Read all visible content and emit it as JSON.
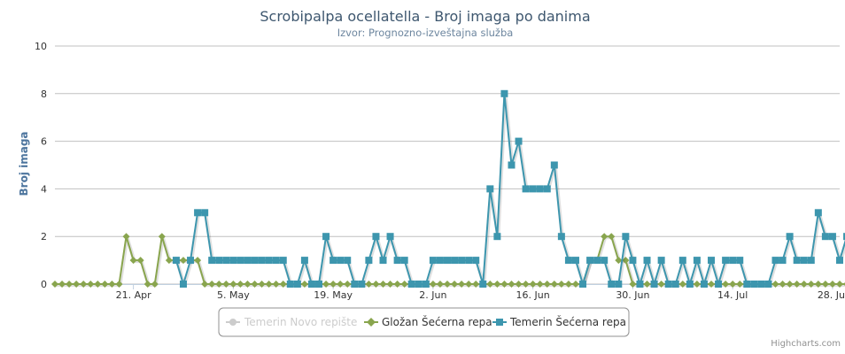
{
  "chart_data": {
    "type": "line",
    "title": "Scrobipalpa ocellatella - Broj imaga po danima",
    "subtitle": "Izvor: Prognozno-izveštajna služba",
    "ylabel": "Broj imaga",
    "xlabel": "",
    "ylim": [
      0,
      10
    ],
    "yticks": [
      "0",
      "2",
      "4",
      "6",
      "8",
      "10"
    ],
    "x_start": "2014-04-10",
    "x_end": "2014-07-29",
    "xticks": [
      {
        "date": "2014-04-21",
        "label": "21. Apr"
      },
      {
        "date": "2014-05-05",
        "label": "5. May"
      },
      {
        "date": "2014-05-19",
        "label": "19. May"
      },
      {
        "date": "2014-06-02",
        "label": "2. Jun"
      },
      {
        "date": "2014-06-16",
        "label": "16. Jun"
      },
      {
        "date": "2014-06-30",
        "label": "30. Jun"
      },
      {
        "date": "2014-07-14",
        "label": "14. Jul"
      },
      {
        "date": "2014-07-28",
        "label": "28. Jul"
      }
    ],
    "grid": true,
    "legend_position": "bottom-center",
    "series": [
      {
        "name": "Temerin Novo repište",
        "color": "#cccccc",
        "marker": "circle",
        "visible": false,
        "start": "2014-04-10",
        "values": []
      },
      {
        "name": "Gložan Šećerna repa",
        "color": "#89a54e",
        "marker": "diamond",
        "visible": true,
        "start": "2014-04-10",
        "values": [
          0,
          0,
          0,
          0,
          0,
          0,
          0,
          0,
          0,
          0,
          2,
          1,
          1,
          0,
          0,
          2,
          1,
          1,
          1,
          1,
          1,
          0,
          0,
          0,
          0,
          0,
          0,
          0,
          0,
          0,
          0,
          0,
          0,
          0,
          0,
          0,
          0,
          0,
          0,
          0,
          0,
          0,
          0,
          0,
          0,
          0,
          0,
          0,
          0,
          0,
          0,
          0,
          0,
          0,
          0,
          0,
          0,
          0,
          0,
          0,
          0,
          0,
          0,
          0,
          0,
          0,
          0,
          0,
          0,
          0,
          0,
          0,
          0,
          0,
          0,
          1,
          1,
          2,
          2,
          1,
          1,
          0,
          0,
          0,
          0,
          0,
          0,
          0,
          0,
          0,
          0,
          0,
          0,
          0,
          0,
          0,
          0,
          0,
          0,
          0,
          0,
          0,
          0,
          0,
          0,
          0,
          0,
          0,
          0,
          0,
          0,
          0
        ]
      },
      {
        "name": "Temerin Šećerna repa",
        "color": "#3d96ae",
        "marker": "square",
        "visible": true,
        "start": "2014-04-27",
        "values": [
          1,
          0,
          1,
          3,
          3,
          1,
          1,
          1,
          1,
          1,
          1,
          1,
          1,
          1,
          1,
          1,
          0,
          0,
          1,
          0,
          0,
          2,
          1,
          1,
          1,
          0,
          0,
          1,
          2,
          1,
          2,
          1,
          1,
          0,
          0,
          0,
          1,
          1,
          1,
          1,
          1,
          1,
          1,
          0,
          4,
          2,
          8,
          5,
          6,
          4,
          4,
          4,
          4,
          5,
          2,
          1,
          1,
          0,
          1,
          1,
          1,
          0,
          0,
          2,
          1,
          0,
          1,
          0,
          1,
          0,
          0,
          1,
          0,
          1,
          0,
          1,
          0,
          1,
          1,
          1,
          0,
          0,
          0,
          0,
          1,
          1,
          2,
          1,
          1,
          1,
          3,
          2,
          2,
          1,
          2
        ]
      }
    ]
  },
  "credits": "Highcharts.com"
}
